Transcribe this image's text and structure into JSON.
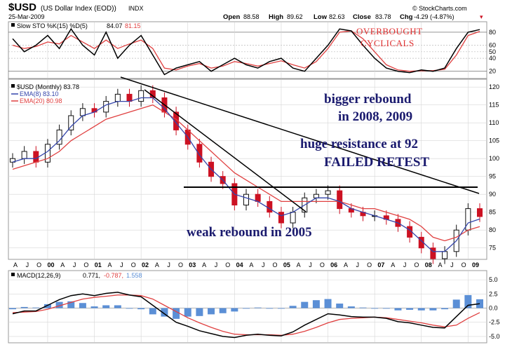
{
  "header": {
    "symbol": "$USD",
    "name": "(US Dollar Index (EOD))",
    "exchange": "INDX",
    "date": "25-Mar-2009",
    "open_label": "Open",
    "open": "88.58",
    "high_label": "High",
    "high": "89.62",
    "low_label": "Low",
    "low": "82.63",
    "close_label": "Close",
    "close": "83.78",
    "chg_label": "Chg",
    "chg": "-4.29 (-4.87%)",
    "watermark": "© StockCharts.com"
  },
  "stoch_panel": {
    "label_a": "Slow STO %K(15) %D(5)",
    "k_value": "84.07",
    "d_value": "81.15",
    "ticks": [
      "80",
      "60",
      "50",
      "40",
      "20"
    ],
    "note_line1": "OVERBOUGHT",
    "note_line2": "CYCLICALS"
  },
  "price_panel": {
    "label": "$USD (Monthly) 83.78",
    "ema8_label": "EMA(8) 83.10",
    "ema20_label": "EMA(20) 80.98",
    "ticks": [
      "120",
      "115",
      "110",
      "105",
      "100",
      "95",
      "90",
      "85",
      "80",
      "75"
    ],
    "note_bigger_1": "bigger rebound",
    "note_bigger_2": "in 2008, 2009",
    "note_resistance": "huge resistance at 92",
    "note_failed": "FAILED RETEST",
    "note_weak": "weak rebound in 2005"
  },
  "x_axis": {
    "labels": [
      "A",
      "J",
      "O",
      "00",
      "A",
      "J",
      "O",
      "01",
      "A",
      "J",
      "O",
      "02",
      "A",
      "J",
      "O",
      "03",
      "A",
      "J",
      "O",
      "04",
      "A",
      "J",
      "O",
      "05",
      "A",
      "J",
      "O",
      "06",
      "A",
      "J",
      "O",
      "07",
      "A",
      "J",
      "O",
      "08",
      "A",
      "J",
      "O",
      "09"
    ]
  },
  "macd_panel": {
    "label": "MACD(12,26,9)",
    "macd_value": "0.771,",
    "signal_value": "-0.787,",
    "hist_value": "1.558",
    "ticks": [
      "5.0",
      "2.5",
      "0.0",
      "-2.5",
      "-5.0"
    ]
  },
  "colors": {
    "up_candle": "#111111",
    "down_candle": "#cc1122",
    "ema8": "#3344aa",
    "ema20": "#e04040",
    "stoch_k": "#000000",
    "stoch_d": "#e04040",
    "macd_hist": "#5b8fd6",
    "annotation_blue": "#1a1a6e",
    "annotation_red": "#e03030"
  },
  "chart_data": {
    "type": "line",
    "x": [
      "1999-04",
      "1999-07",
      "1999-10",
      "2000-01",
      "2000-04",
      "2000-07",
      "2000-10",
      "2001-01",
      "2001-04",
      "2001-07",
      "2001-10",
      "2002-01",
      "2002-04",
      "2002-07",
      "2002-10",
      "2003-01",
      "2003-04",
      "2003-07",
      "2003-10",
      "2004-01",
      "2004-04",
      "2004-07",
      "2004-10",
      "2005-01",
      "2005-04",
      "2005-07",
      "2005-10",
      "2006-01",
      "2006-04",
      "2006-07",
      "2006-10",
      "2007-01",
      "2007-04",
      "2007-07",
      "2007-10",
      "2008-01",
      "2008-04",
      "2008-07",
      "2008-10",
      "2009-01",
      "2009-03"
    ],
    "series": [
      {
        "name": "$USD (Monthly)",
        "values": [
          100,
          102,
          99,
          104,
          108,
          112,
          114,
          113,
          116,
          118,
          116,
          119,
          117,
          113,
          108,
          104,
          99,
          95,
          93,
          87,
          90,
          88,
          85,
          82,
          85,
          89,
          90,
          91,
          86,
          85,
          84,
          84,
          83,
          81,
          78,
          75,
          72,
          74,
          80,
          86,
          83.78
        ]
      },
      {
        "name": "EMA(8)",
        "values": [
          99,
          100,
          100,
          102,
          105,
          109,
          112,
          113,
          115,
          116,
          116,
          117,
          117,
          114,
          110,
          106,
          101,
          97,
          94,
          90,
          89,
          88,
          86,
          84,
          85,
          87,
          89,
          89,
          88,
          86,
          85,
          84,
          83,
          82,
          80,
          77,
          74,
          74,
          77,
          82,
          83.1
        ]
      },
      {
        "name": "EMA(20)",
        "values": [
          97,
          98,
          99,
          100,
          102,
          105,
          107,
          109,
          111,
          112,
          113,
          114,
          115,
          113,
          111,
          108,
          105,
          102,
          99,
          96,
          94,
          92,
          90,
          88,
          88,
          88,
          88,
          88,
          88,
          87,
          86,
          86,
          85,
          84,
          83,
          81,
          78,
          77,
          78,
          80,
          80.98
        ]
      }
    ],
    "resistance": 92,
    "ylim": [
      72,
      122
    ],
    "stoch": {
      "k": [
        70,
        50,
        60,
        75,
        55,
        85,
        60,
        45,
        80,
        40,
        60,
        75,
        45,
        15,
        25,
        30,
        35,
        20,
        30,
        40,
        30,
        25,
        35,
        40,
        25,
        20,
        40,
        60,
        85,
        82,
        60,
        40,
        25,
        20,
        18,
        22,
        20,
        25,
        55,
        80,
        84.07
      ],
      "d": [
        60,
        55,
        58,
        65,
        62,
        75,
        65,
        55,
        68,
        55,
        62,
        68,
        55,
        25,
        22,
        28,
        32,
        25,
        28,
        35,
        32,
        28,
        32,
        36,
        30,
        25,
        35,
        55,
        80,
        82,
        70,
        50,
        30,
        22,
        20,
        21,
        21,
        23,
        45,
        75,
        81.15
      ],
      "ylim": [
        10,
        95
      ]
    },
    "macd": {
      "macd": [
        -1.0,
        -0.5,
        -0.5,
        0.5,
        1.5,
        2.2,
        2.5,
        2.2,
        2.6,
        2.8,
        2.3,
        2.0,
        0.5,
        -1.0,
        -2.5,
        -3.2,
        -4.0,
        -4.5,
        -5.0,
        -5.2,
        -4.8,
        -4.6,
        -4.8,
        -4.9,
        -4.2,
        -3.0,
        -2.0,
        -1.0,
        -1.2,
        -1.5,
        -1.6,
        -1.6,
        -1.8,
        -2.4,
        -2.6,
        -3.0,
        -3.4,
        -3.5,
        -1.5,
        0.5,
        0.771
      ],
      "signal": [
        -0.8,
        -0.7,
        -0.6,
        -0.2,
        0.4,
        1.0,
        1.6,
        1.9,
        2.1,
        2.3,
        2.3,
        2.2,
        1.6,
        0.5,
        -0.6,
        -1.7,
        -2.6,
        -3.4,
        -4.1,
        -4.6,
        -4.7,
        -4.7,
        -4.7,
        -4.8,
        -4.6,
        -4.1,
        -3.4,
        -2.6,
        -2.0,
        -1.8,
        -1.7,
        -1.6,
        -1.7,
        -2.0,
        -2.3,
        -2.6,
        -3.0,
        -3.3,
        -3.0,
        -1.8,
        -0.787
      ],
      "ylim": [
        -6,
        6.5
      ]
    }
  }
}
